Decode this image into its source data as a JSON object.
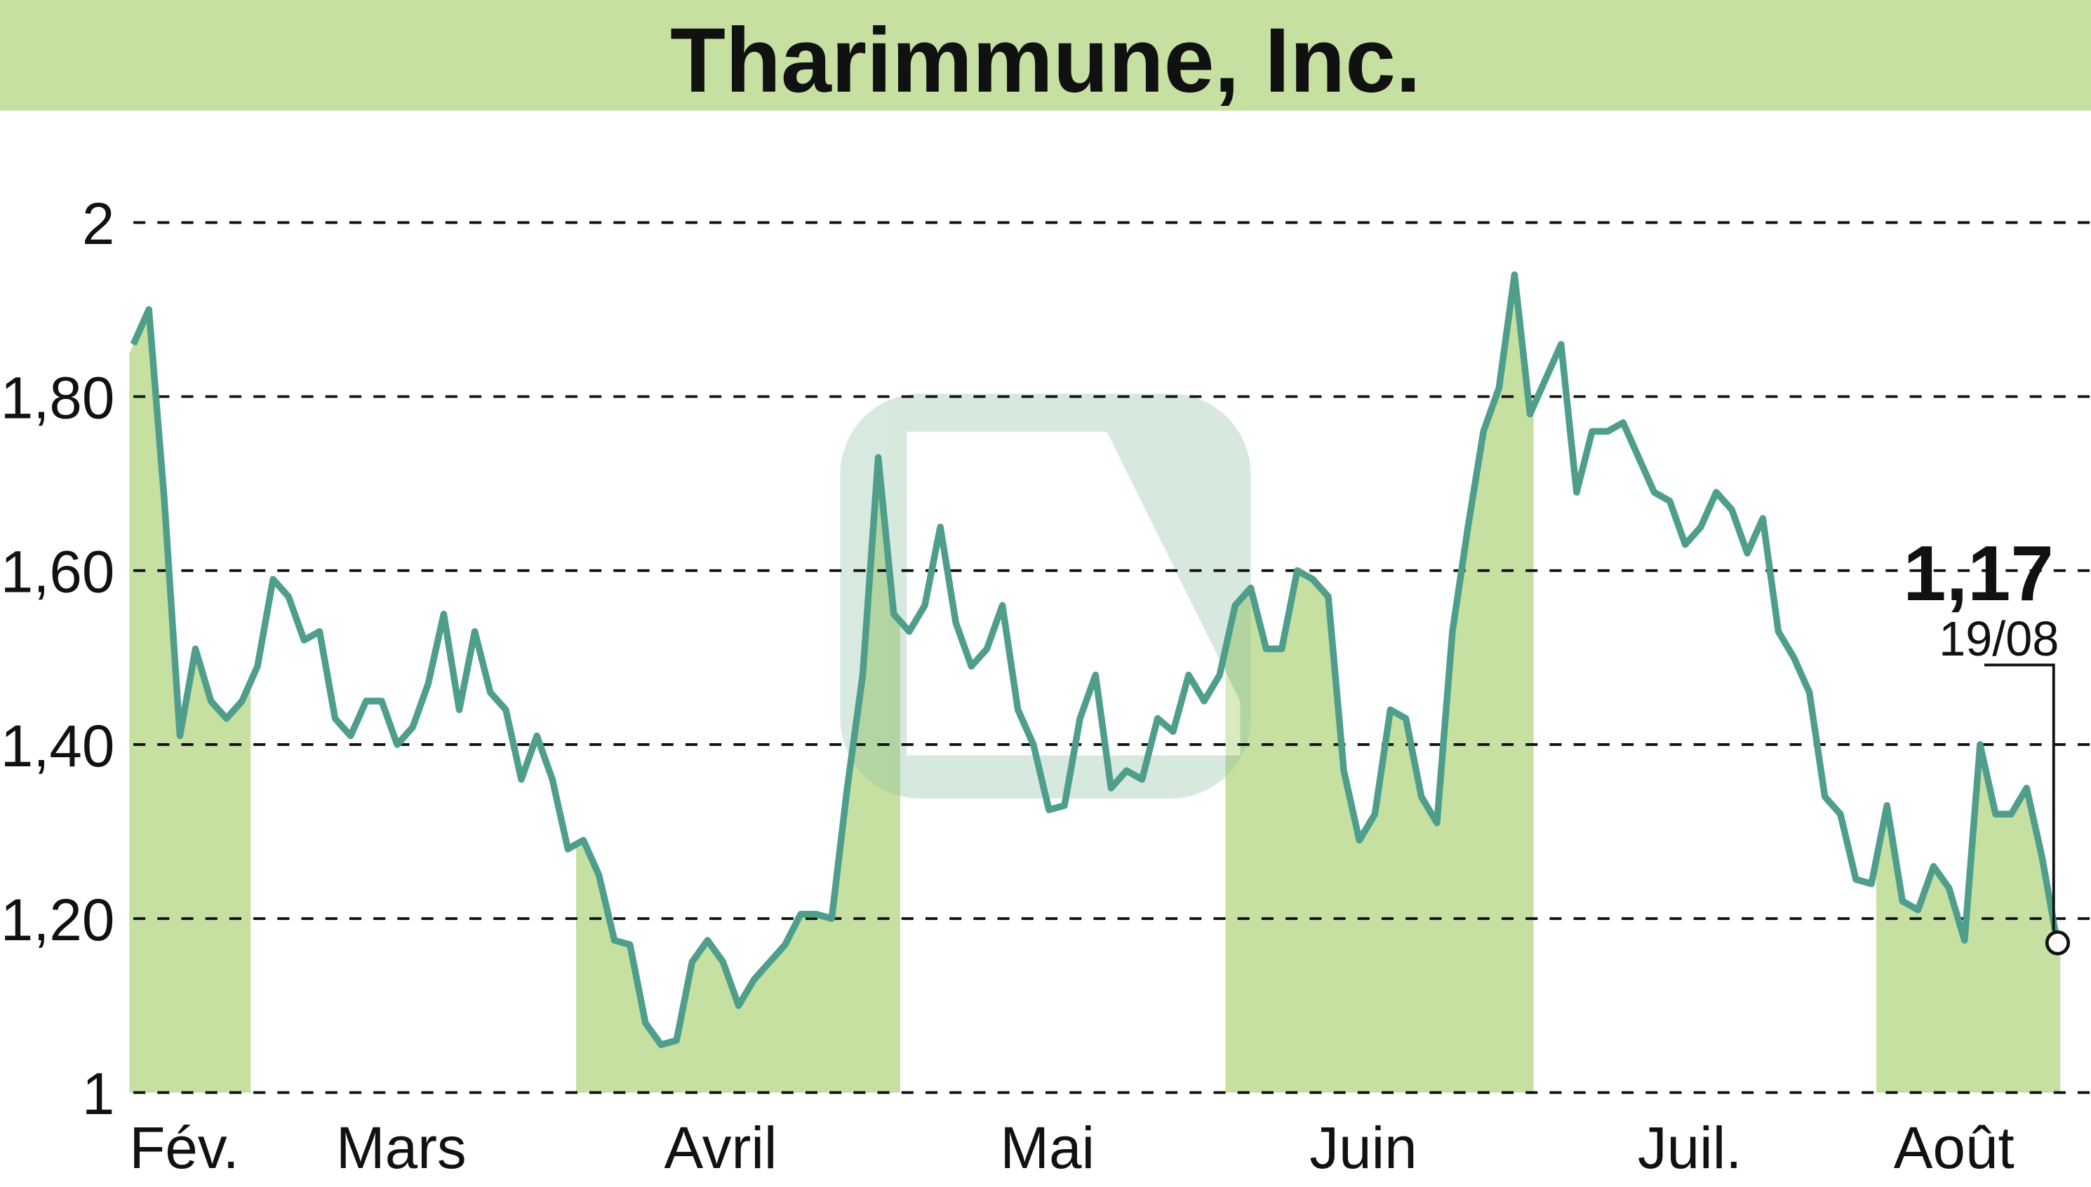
{
  "chart_data": {
    "type": "line",
    "title": "Tharimmune, Inc.",
    "xlabel": "",
    "ylabel": "",
    "ylim": [
      1,
      2
    ],
    "y_ticks": [
      "1",
      "1,20",
      "1,40",
      "1,60",
      "1,80",
      "2"
    ],
    "y_tick_values": [
      1,
      1.2,
      1.4,
      1.6,
      1.8,
      2
    ],
    "months": [
      "Fév.",
      "Mars",
      "Avril",
      "Mai",
      "Juin",
      "Juil.",
      "Août"
    ],
    "shaded_months": [
      "Fév.",
      "Avril",
      "Juin",
      "Août"
    ],
    "grid": true,
    "last_value": "1,17",
    "last_date": "19/08",
    "colors": {
      "line": "#4f9e8c",
      "fill": "#c5e0a0",
      "header": "#c5e0a0"
    },
    "values": [
      1.86,
      1.9,
      1.68,
      1.41,
      1.51,
      1.45,
      1.43,
      1.45,
      1.49,
      1.59,
      1.57,
      1.52,
      1.53,
      1.43,
      1.41,
      1.45,
      1.45,
      1.4,
      1.42,
      1.47,
      1.55,
      1.44,
      1.53,
      1.46,
      1.44,
      1.36,
      1.41,
      1.36,
      1.28,
      1.29,
      1.25,
      1.175,
      1.17,
      1.08,
      1.055,
      1.06,
      1.15,
      1.175,
      1.15,
      1.1,
      1.13,
      1.15,
      1.17,
      1.205,
      1.205,
      1.2,
      1.35,
      1.48,
      1.73,
      1.55,
      1.53,
      1.56,
      1.65,
      1.54,
      1.49,
      1.51,
      1.56,
      1.44,
      1.4,
      1.325,
      1.33,
      1.43,
      1.48,
      1.35,
      1.37,
      1.36,
      1.43,
      1.415,
      1.48,
      1.45,
      1.48,
      1.56,
      1.58,
      1.51,
      1.51,
      1.6,
      1.59,
      1.57,
      1.37,
      1.29,
      1.32,
      1.44,
      1.43,
      1.34,
      1.31,
      1.53,
      1.65,
      1.76,
      1.81,
      1.94,
      1.78,
      1.82,
      1.86,
      1.69,
      1.76,
      1.76,
      1.77,
      1.73,
      1.69,
      1.68,
      1.63,
      1.65,
      1.69,
      1.67,
      1.62,
      1.66,
      1.53,
      1.5,
      1.46,
      1.34,
      1.32,
      1.245,
      1.24,
      1.33,
      1.22,
      1.21,
      1.26,
      1.235,
      1.175,
      1.4,
      1.32,
      1.32,
      1.35,
      1.27,
      1.17
    ]
  }
}
